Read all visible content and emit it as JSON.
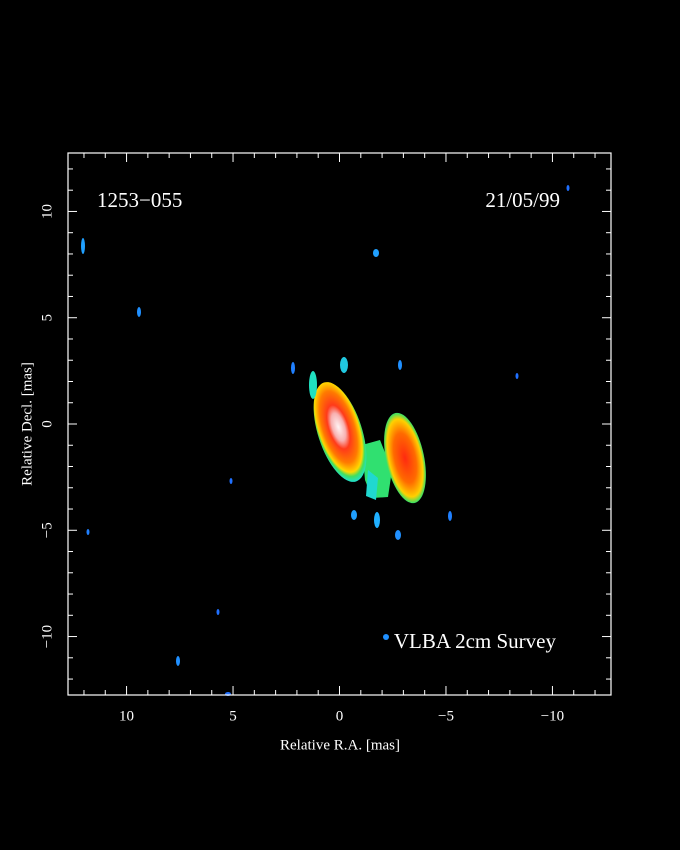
{
  "chart_data": {
    "type": "image",
    "source": "1253−055",
    "date": "21/05/99",
    "caption": "VLBA 2cm Survey",
    "xlabel": "Relative R.A. [mas]",
    "ylabel": "Relative Decl. [mas]",
    "xlim": [
      12.75,
      -12.75
    ],
    "ylim": [
      -12.75,
      12.75
    ],
    "xticks": [
      10,
      5,
      0,
      {
        "value": -5,
        "label": "−5"
      },
      {
        "value": -10,
        "label": "−10"
      }
    ],
    "yticks": [
      {
        "value": -10,
        "label": "−10"
      },
      {
        "value": -5,
        "label": "−5"
      },
      0,
      5,
      10
    ],
    "xminorticks": [
      -12,
      -11,
      -9,
      -8,
      -7,
      -6,
      -4,
      -3,
      -2,
      -1,
      1,
      2,
      3,
      4,
      6,
      7,
      8,
      9,
      11,
      12
    ],
    "yminorticks": [
      -12,
      -11,
      -9,
      -8,
      -7,
      -6,
      -4,
      -3,
      -2,
      -1,
      1,
      2,
      3,
      4,
      6,
      7,
      8,
      9,
      11,
      12
    ],
    "axis_color": "#ffffff",
    "background": "#000000"
  }
}
